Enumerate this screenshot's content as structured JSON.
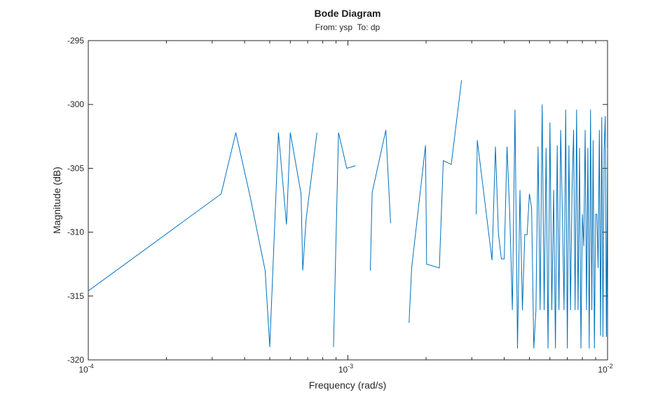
{
  "chart_data": {
    "type": "line",
    "title": "Bode Diagram",
    "subtitle": "From: ysp  To: dp",
    "xlabel": "Frequency (rad/s)",
    "ylabel": "Magnitude (dB)",
    "xscale": "log",
    "xlim": [
      0.0001,
      0.01
    ],
    "ylim": [
      -320,
      -295
    ],
    "grid": false,
    "box": true,
    "color": "#0072BD",
    "x_ticks": [
      {
        "base": "10",
        "exp": "-4",
        "value": 0.0001
      },
      {
        "base": "10",
        "exp": "-3",
        "value": 0.001
      },
      {
        "base": "10",
        "exp": "-2",
        "value": 0.01
      }
    ],
    "y_ticks": [
      "-295",
      "-300",
      "-305",
      "-310",
      "-315",
      "-320"
    ],
    "segments": [
      [
        [
          0.0001,
          -314.6
        ],
        [
          0.000325,
          -307.0
        ],
        [
          0.00037,
          -302.2
        ],
        [
          0.00042,
          -307.2
        ],
        [
          0.00048,
          -313.0
        ],
        [
          0.0005,
          -319.0
        ],
        [
          0.00054,
          -302.2
        ],
        [
          0.00058,
          -309.4
        ],
        [
          0.0006,
          -302.2
        ],
        [
          0.00066,
          -307.0
        ],
        [
          0.00067,
          -313.0
        ],
        [
          0.00069,
          -309.0
        ],
        [
          0.00076,
          -302.2
        ]
      ],
      [
        [
          0.00088,
          -319.0
        ],
        [
          0.00092,
          -302.2
        ],
        [
          0.00099,
          -305.0
        ],
        [
          0.00107,
          -304.8
        ]
      ],
      [
        [
          0.00122,
          -313.0
        ],
        [
          0.00124,
          -306.9
        ],
        [
          0.0014,
          -302.0
        ],
        [
          0.00146,
          -309.3
        ]
      ],
      [
        [
          0.00172,
          -317.1
        ],
        [
          0.00176,
          -312.8
        ],
        [
          0.00199,
          -303.2
        ],
        [
          0.00201,
          -312.5
        ],
        [
          0.00225,
          -312.8
        ],
        [
          0.00233,
          -304.4
        ],
        [
          0.0025,
          -304.7
        ],
        [
          0.00274,
          -298.1
        ]
      ],
      [
        [
          0.00312,
          -308.6
        ],
        [
          0.00315,
          -302.8
        ],
        [
          0.00359,
          -312.2
        ],
        [
          0.0037,
          -303.3
        ],
        [
          0.0038,
          -310.1
        ],
        [
          0.0039,
          -312.1
        ],
        [
          0.004,
          -312.1
        ],
        [
          0.0041,
          -303.3
        ],
        [
          0.0042,
          -308.5
        ],
        [
          0.0043,
          -316.1
        ],
        [
          0.0044,
          -300.4
        ],
        [
          0.0045,
          -319.1
        ],
        [
          0.0046,
          -306.7
        ],
        [
          0.0047,
          -316.1
        ],
        [
          0.0048,
          -310.2
        ],
        [
          0.0049,
          -310.2
        ],
        [
          0.005,
          -307.0
        ],
        [
          0.0051,
          -308.1
        ],
        [
          0.0052,
          -319.1
        ],
        [
          0.0053,
          -316.1
        ],
        [
          0.0054,
          -303.3
        ],
        [
          0.0055,
          -316.1
        ],
        [
          0.0056,
          -300.0
        ],
        [
          0.0057,
          -316.1
        ],
        [
          0.0058,
          -303.4
        ],
        [
          0.0059,
          -319.1
        ],
        [
          0.006,
          -301.4
        ],
        [
          0.0061,
          -316.1
        ],
        [
          0.0062,
          -306.7
        ],
        [
          0.0063,
          -319.1
        ],
        [
          0.0064,
          -303.2
        ],
        [
          0.0065,
          -316.1
        ],
        [
          0.0066,
          -302.0
        ],
        [
          0.0067,
          -308.6
        ],
        [
          0.0068,
          -316.1
        ],
        [
          0.0069,
          -300.4
        ],
        [
          0.007,
          -319.1
        ],
        [
          0.0071,
          -303.2
        ],
        [
          0.0072,
          -316.1
        ],
        [
          0.0073,
          -306.7
        ],
        [
          0.0074,
          -302.0
        ],
        [
          0.0075,
          -316.1
        ],
        [
          0.0076,
          -300.4
        ],
        [
          0.0077,
          -316.1
        ],
        [
          0.0078,
          -303.4
        ],
        [
          0.0079,
          -319.1
        ],
        [
          0.008,
          -308.6
        ],
        [
          0.0081,
          -311.1
        ],
        [
          0.0082,
          -302.0
        ],
        [
          0.0083,
          -316.1
        ],
        [
          0.0084,
          -303.4
        ],
        [
          0.0085,
          -319.1
        ],
        [
          0.0086,
          -300.4
        ],
        [
          0.0087,
          -316.1
        ],
        [
          0.0088,
          -302.8
        ],
        [
          0.0089,
          -319.1
        ],
        [
          0.009,
          -308.6
        ],
        [
          0.0091,
          -308.6
        ],
        [
          0.0092,
          -312.8
        ],
        [
          0.0093,
          -302.0
        ],
        [
          0.0094,
          -318.1
        ],
        [
          0.0095,
          -301.0
        ],
        [
          0.0096,
          -318.2
        ],
        [
          0.0097,
          -303.6
        ],
        [
          0.0098,
          -300.9
        ],
        [
          0.0099,
          -318.2
        ],
        [
          0.01,
          -303.4
        ]
      ]
    ]
  }
}
